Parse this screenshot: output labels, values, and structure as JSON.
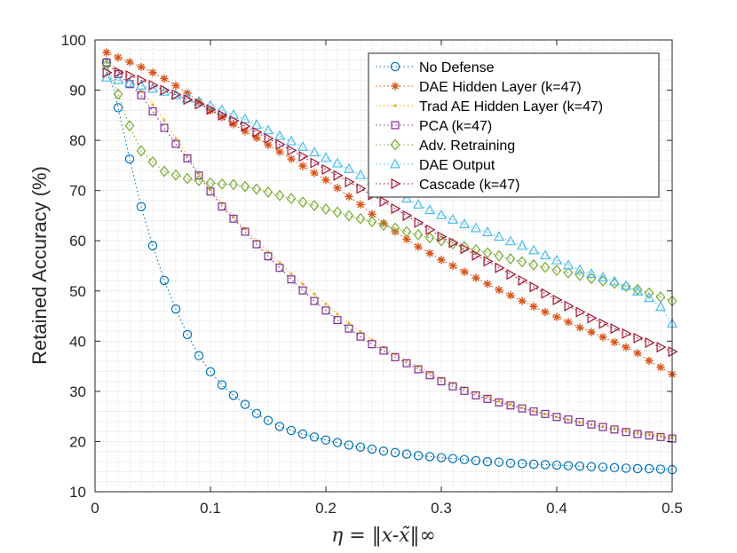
{
  "chart_data": {
    "type": "line",
    "title": "",
    "xlabel": "η = ‖x-x̃‖∞",
    "ylabel": "Retained Accuracy (%)",
    "xlim": [
      0,
      0.5
    ],
    "ylim": [
      10,
      100
    ],
    "xticks": [
      0,
      0.1,
      0.2,
      0.3,
      0.4,
      0.5
    ],
    "xtick_labels": [
      "0",
      "0.1",
      "0.2",
      "0.3",
      "0.4",
      "0.5"
    ],
    "yticks": [
      10,
      20,
      30,
      40,
      50,
      60,
      70,
      80,
      90,
      100
    ],
    "ytick_labels": [
      "10",
      "20",
      "30",
      "40",
      "50",
      "60",
      "70",
      "80",
      "90",
      "100"
    ],
    "grid": "dotted, minor",
    "legend_position": "top-right",
    "x": [
      0.01,
      0.02,
      0.03,
      0.04,
      0.05,
      0.06,
      0.07,
      0.08,
      0.09,
      0.1,
      0.11,
      0.12,
      0.13,
      0.14,
      0.15,
      0.16,
      0.17,
      0.18,
      0.19,
      0.2,
      0.21,
      0.22,
      0.23,
      0.24,
      0.25,
      0.26,
      0.27,
      0.28,
      0.29,
      0.3,
      0.31,
      0.32,
      0.33,
      0.34,
      0.35,
      0.36,
      0.37,
      0.38,
      0.39,
      0.4,
      0.41,
      0.42,
      0.43,
      0.44,
      0.45,
      0.46,
      0.47,
      0.48,
      0.49,
      0.5
    ],
    "series": [
      {
        "name": "No Defense",
        "color": "#0072BD",
        "marker": "circle",
        "line": "dotted",
        "values": [
          95.5,
          86.5,
          76.3,
          66.8,
          59.0,
          52.1,
          46.4,
          41.3,
          37.1,
          33.9,
          31.3,
          29.2,
          27.4,
          25.6,
          24.2,
          23.0,
          22.2,
          21.5,
          20.9,
          20.3,
          19.8,
          19.3,
          18.9,
          18.5,
          18.1,
          17.8,
          17.5,
          17.2,
          17.0,
          16.8,
          16.6,
          16.4,
          16.2,
          16.0,
          15.9,
          15.7,
          15.6,
          15.5,
          15.4,
          15.3,
          15.2,
          15.1,
          15.0,
          14.9,
          14.8,
          14.7,
          14.6,
          14.6,
          14.5,
          14.4
        ]
      },
      {
        "name": "DAE Hidden Layer (k=47)",
        "color": "#D95319",
        "marker": "asterisk",
        "line": "dotted",
        "values": [
          97.5,
          96.5,
          95.6,
          94.6,
          93.5,
          92.3,
          90.9,
          89.4,
          87.7,
          86.0,
          84.6,
          83.2,
          81.8,
          80.5,
          79.1,
          77.7,
          76.3,
          74.9,
          73.5,
          72.1,
          70.5,
          68.8,
          67.2,
          65.3,
          63.5,
          61.8,
          60.3,
          58.8,
          57.5,
          56.2,
          55.0,
          53.8,
          52.6,
          51.4,
          50.2,
          49.1,
          48.0,
          46.9,
          45.8,
          44.8,
          43.8,
          42.7,
          41.8,
          40.8,
          39.8,
          38.8,
          37.6,
          36.1,
          34.8,
          33.4
        ]
      },
      {
        "name": "Trad AE Hidden Layer (k=47)",
        "color": "#EDB120",
        "marker": "dot",
        "line": "dotted",
        "values": [
          95.8,
          94.0,
          92.0,
          89.8,
          87.1,
          84.0,
          80.4,
          77.0,
          73.5,
          70.2,
          67.5,
          64.8,
          62.4,
          60.0,
          57.8,
          55.6,
          53.4,
          51.4,
          49.4,
          47.4,
          45.4,
          43.6,
          41.9,
          40.3,
          38.8,
          37.4,
          36.1,
          34.9,
          33.7,
          32.6,
          31.6,
          30.7,
          29.8,
          28.9,
          28.1,
          27.4,
          26.7,
          26.1,
          25.5,
          24.9,
          24.3,
          23.8,
          23.4,
          23.0,
          22.6,
          22.2,
          21.8,
          21.5,
          21.2,
          20.8
        ]
      },
      {
        "name": "PCA (k=47)",
        "color": "#7E2F8E",
        "marker": "square",
        "line": "dotted",
        "values": [
          95.5,
          93.2,
          91.2,
          89.0,
          85.8,
          82.5,
          79.3,
          76.4,
          73.0,
          69.8,
          66.8,
          64.4,
          61.8,
          59.3,
          56.9,
          54.6,
          52.3,
          50.1,
          48.0,
          46.1,
          44.2,
          42.5,
          40.9,
          39.4,
          38.1,
          36.8,
          35.6,
          34.4,
          33.2,
          32.0,
          31.0,
          30.1,
          29.2,
          28.5,
          27.8,
          27.2,
          26.6,
          26.0,
          25.5,
          24.9,
          24.4,
          23.9,
          23.4,
          22.9,
          22.4,
          21.9,
          21.5,
          21.2,
          20.9,
          20.6
        ]
      },
      {
        "name": "Adv. Retraining",
        "color": "#77AC30",
        "marker": "diamond",
        "line": "dotted",
        "values": [
          95.0,
          89.2,
          82.9,
          77.9,
          75.7,
          73.8,
          73.1,
          72.4,
          72.0,
          71.5,
          71.3,
          71.2,
          70.8,
          70.3,
          69.7,
          69.0,
          68.4,
          67.7,
          67.0,
          66.3,
          65.7,
          65.0,
          64.4,
          63.8,
          63.1,
          62.5,
          61.8,
          61.2,
          60.6,
          60.0,
          59.4,
          58.8,
          58.2,
          57.6,
          57.0,
          56.4,
          55.8,
          55.2,
          54.7,
          54.1,
          53.6,
          53.1,
          52.5,
          52.0,
          51.5,
          50.9,
          50.3,
          49.6,
          48.8,
          48.0
        ]
      },
      {
        "name": "DAE Output",
        "color": "#4DBEEE",
        "marker": "triangle-up",
        "line": "dotted",
        "values": [
          92.5,
          92.0,
          91.4,
          90.9,
          90.3,
          89.7,
          89.0,
          88.4,
          87.7,
          86.9,
          86.0,
          85.1,
          84.2,
          83.1,
          82.0,
          80.9,
          79.8,
          78.7,
          77.6,
          76.5,
          75.4,
          74.3,
          73.1,
          71.9,
          70.7,
          69.5,
          68.4,
          67.2,
          66.1,
          65.1,
          64.2,
          63.3,
          62.5,
          61.7,
          60.8,
          59.9,
          59.0,
          58.1,
          57.1,
          56.1,
          55.1,
          54.2,
          53.4,
          52.7,
          51.9,
          51.0,
          49.9,
          48.6,
          46.8,
          43.5
        ]
      },
      {
        "name": "Cascade (k=47)",
        "color": "#A2142F",
        "marker": "triangle-right",
        "line": "dotted",
        "values": [
          93.5,
          93.6,
          92.9,
          92.0,
          91.0,
          90.0,
          89.1,
          88.1,
          87.2,
          86.1,
          85.0,
          83.9,
          82.8,
          81.6,
          80.4,
          79.2,
          78.0,
          76.8,
          75.5,
          74.2,
          73.0,
          71.7,
          70.4,
          69.1,
          67.8,
          66.4,
          65.0,
          63.6,
          62.2,
          60.8,
          59.6,
          58.4,
          57.1,
          55.9,
          54.6,
          53.3,
          52.1,
          50.8,
          49.5,
          48.2,
          47.0,
          45.8,
          44.6,
          43.5,
          42.5,
          41.5,
          40.6,
          39.7,
          38.8,
          37.9
        ]
      }
    ]
  }
}
